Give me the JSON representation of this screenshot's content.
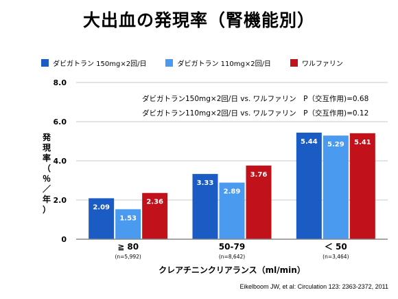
{
  "title": "大出血の発現率（腎機能別）",
  "legend": [
    {
      "name": "ダビガトラン 150mg×2回/日",
      "color": "#1a5bc4"
    },
    {
      "name": "ダビガトラン 110mg×2回/日",
      "color": "#4a9af0"
    },
    {
      "name": "ワルファリン",
      "color": "#c1121c"
    }
  ],
  "annotations": [
    "ダビガトラン150mg×2回/日 vs. ワルファリン　P（交互作用)=0.68",
    "ダビガトラン110mg×2回/日 vs. ワルファリン　P（交互作用)=0.12"
  ],
  "source": "Eikelboom JW, et al: Circulation 123: 2363-2372, 2011",
  "chart_data": {
    "type": "bar",
    "ylabel": "発現率（％／年）",
    "xlabel": "クレアチニンクリアランス（ml/min）",
    "ylim": [
      0,
      8
    ],
    "yticks": [
      "0",
      "2.0",
      "4.0",
      "6.0",
      "8.0"
    ],
    "ytick_values": [
      0,
      2,
      4,
      6,
      8
    ],
    "grid": true,
    "categories": [
      "≧ 80",
      "50-79",
      "＜ 50"
    ],
    "category_notes": [
      "(n=5,992)",
      "(n=8,642)",
      "(n=3,464)"
    ],
    "series": [
      {
        "name": "ダビガトラン 150mg×2回/日",
        "color": "#1a5bc4",
        "values": [
          2.09,
          3.33,
          5.44
        ],
        "labels": [
          "2.09",
          "3.33",
          "5.44"
        ]
      },
      {
        "name": "ダビガトラン 110mg×2回/日",
        "color": "#4a9af0",
        "values": [
          1.53,
          2.89,
          5.29
        ],
        "labels": [
          "1.53",
          "2.89",
          "5.29"
        ]
      },
      {
        "name": "ワルファリン",
        "color": "#c1121c",
        "values": [
          2.36,
          3.76,
          5.41
        ],
        "labels": [
          "2.36",
          "3.76",
          "5.41"
        ]
      }
    ]
  }
}
